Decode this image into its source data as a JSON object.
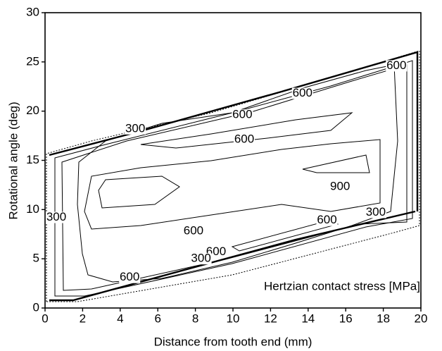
{
  "chart_data": {
    "type": "contour",
    "xlabel": "Distance from tooth end (mm)",
    "ylabel": "Rotational angle (deg)",
    "annotation": "Hertzian contact stress [MPa]",
    "xlim": [
      0,
      20
    ],
    "ylim": [
      0,
      30
    ],
    "xticks": [
      0,
      2,
      4,
      6,
      8,
      10,
      12,
      14,
      16,
      18,
      20
    ],
    "yticks": [
      0,
      5,
      10,
      15,
      20,
      25,
      30
    ],
    "contour_labels": [
      {
        "value": 300,
        "x": 4.8,
        "y": 18.2
      },
      {
        "value": 600,
        "x": 10.5,
        "y": 19.6
      },
      {
        "value": 600,
        "x": 13.7,
        "y": 21.8
      },
      {
        "value": 600,
        "x": 18.7,
        "y": 24.6
      },
      {
        "value": 600,
        "x": 10.6,
        "y": 17.1
      },
      {
        "value": 900,
        "x": 15.7,
        "y": 12.3
      },
      {
        "value": 300,
        "x": 0.6,
        "y": 9.2
      },
      {
        "value": 600,
        "x": 7.9,
        "y": 7.8
      },
      {
        "value": 300,
        "x": 17.6,
        "y": 9.7
      },
      {
        "value": 600,
        "x": 15.0,
        "y": 8.9
      },
      {
        "value": 600,
        "x": 9.1,
        "y": 5.7
      },
      {
        "value": 300,
        "x": 8.3,
        "y": 5.0
      },
      {
        "value": 600,
        "x": 4.5,
        "y": 3.1
      }
    ]
  }
}
